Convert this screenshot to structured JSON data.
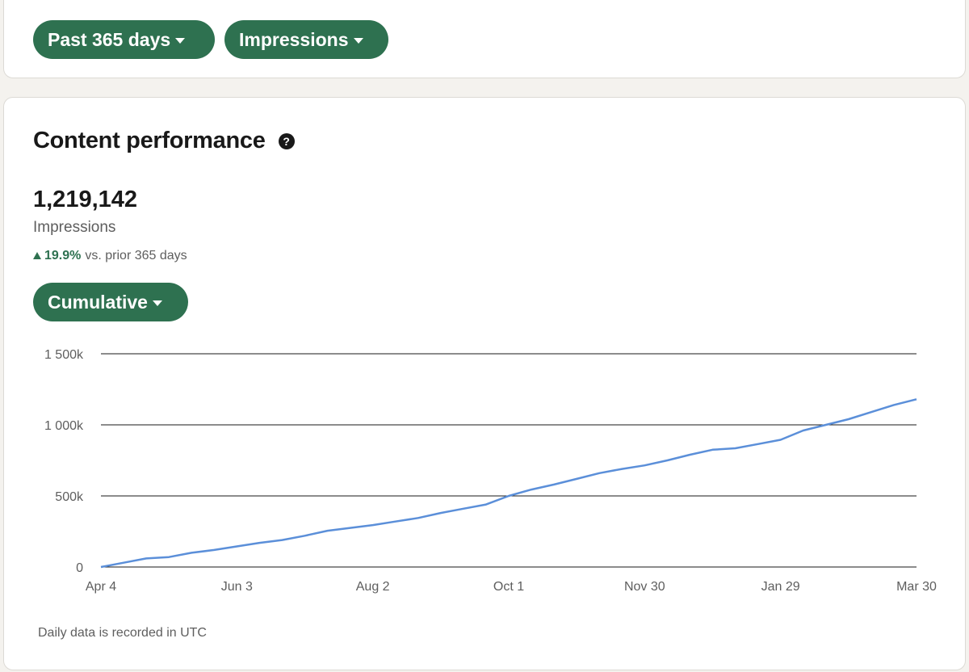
{
  "filters": {
    "range_label": "Past 365 days",
    "metric_label": "Impressions"
  },
  "card": {
    "title": "Content performance",
    "help_icon": "question-circle-icon",
    "total": "1,219,142",
    "total_label": "Impressions",
    "change_value": "19.9%",
    "change_text": "vs. prior 365 days",
    "mode_label": "Cumulative",
    "footnote": "Daily data is recorded in UTC"
  },
  "colors": {
    "accent": "#2e7150",
    "line": "#5b8fd9",
    "grid": "#191919"
  },
  "chart_data": {
    "type": "line",
    "title": "",
    "xlabel": "",
    "ylabel": "",
    "x_tick_labels": [
      "Apr 4",
      "Jun 3",
      "Aug 2",
      "Oct 1",
      "Nov 30",
      "Jan 29",
      "Mar 30"
    ],
    "y_tick_labels": [
      "0",
      "500k",
      "1 000k",
      "1 500k"
    ],
    "y_ticks": [
      0,
      500000,
      1000000,
      1500000
    ],
    "ylim": [
      0,
      1500000
    ],
    "grid": "horizontal",
    "series": [
      {
        "x": [
          "Apr 4",
          "Apr 14",
          "Apr 24",
          "May 4",
          "May 14",
          "May 24",
          "Jun 3",
          "Jun 13",
          "Jun 23",
          "Jul 3",
          "Jul 13",
          "Jul 23",
          "Aug 2",
          "Aug 12",
          "Aug 22",
          "Sep 1",
          "Sep 11",
          "Sep 21",
          "Oct 1",
          "Oct 11",
          "Oct 21",
          "Oct 31",
          "Nov 10",
          "Nov 20",
          "Nov 30",
          "Dec 10",
          "Dec 20",
          "Dec 30",
          "Jan 9",
          "Jan 19",
          "Jan 29",
          "Feb 8",
          "Feb 18",
          "Feb 28",
          "Mar 10",
          "Mar 20",
          "Mar 30"
        ],
        "values": [
          0,
          30000,
          60000,
          70000,
          100000,
          120000,
          145000,
          170000,
          190000,
          220000,
          255000,
          275000,
          295000,
          320000,
          345000,
          380000,
          410000,
          440000,
          500000,
          545000,
          580000,
          620000,
          660000,
          690000,
          715000,
          750000,
          790000,
          825000,
          835000,
          865000,
          895000,
          960000,
          1000000,
          1040000,
          1090000,
          1140000,
          1180000
        ]
      }
    ]
  }
}
